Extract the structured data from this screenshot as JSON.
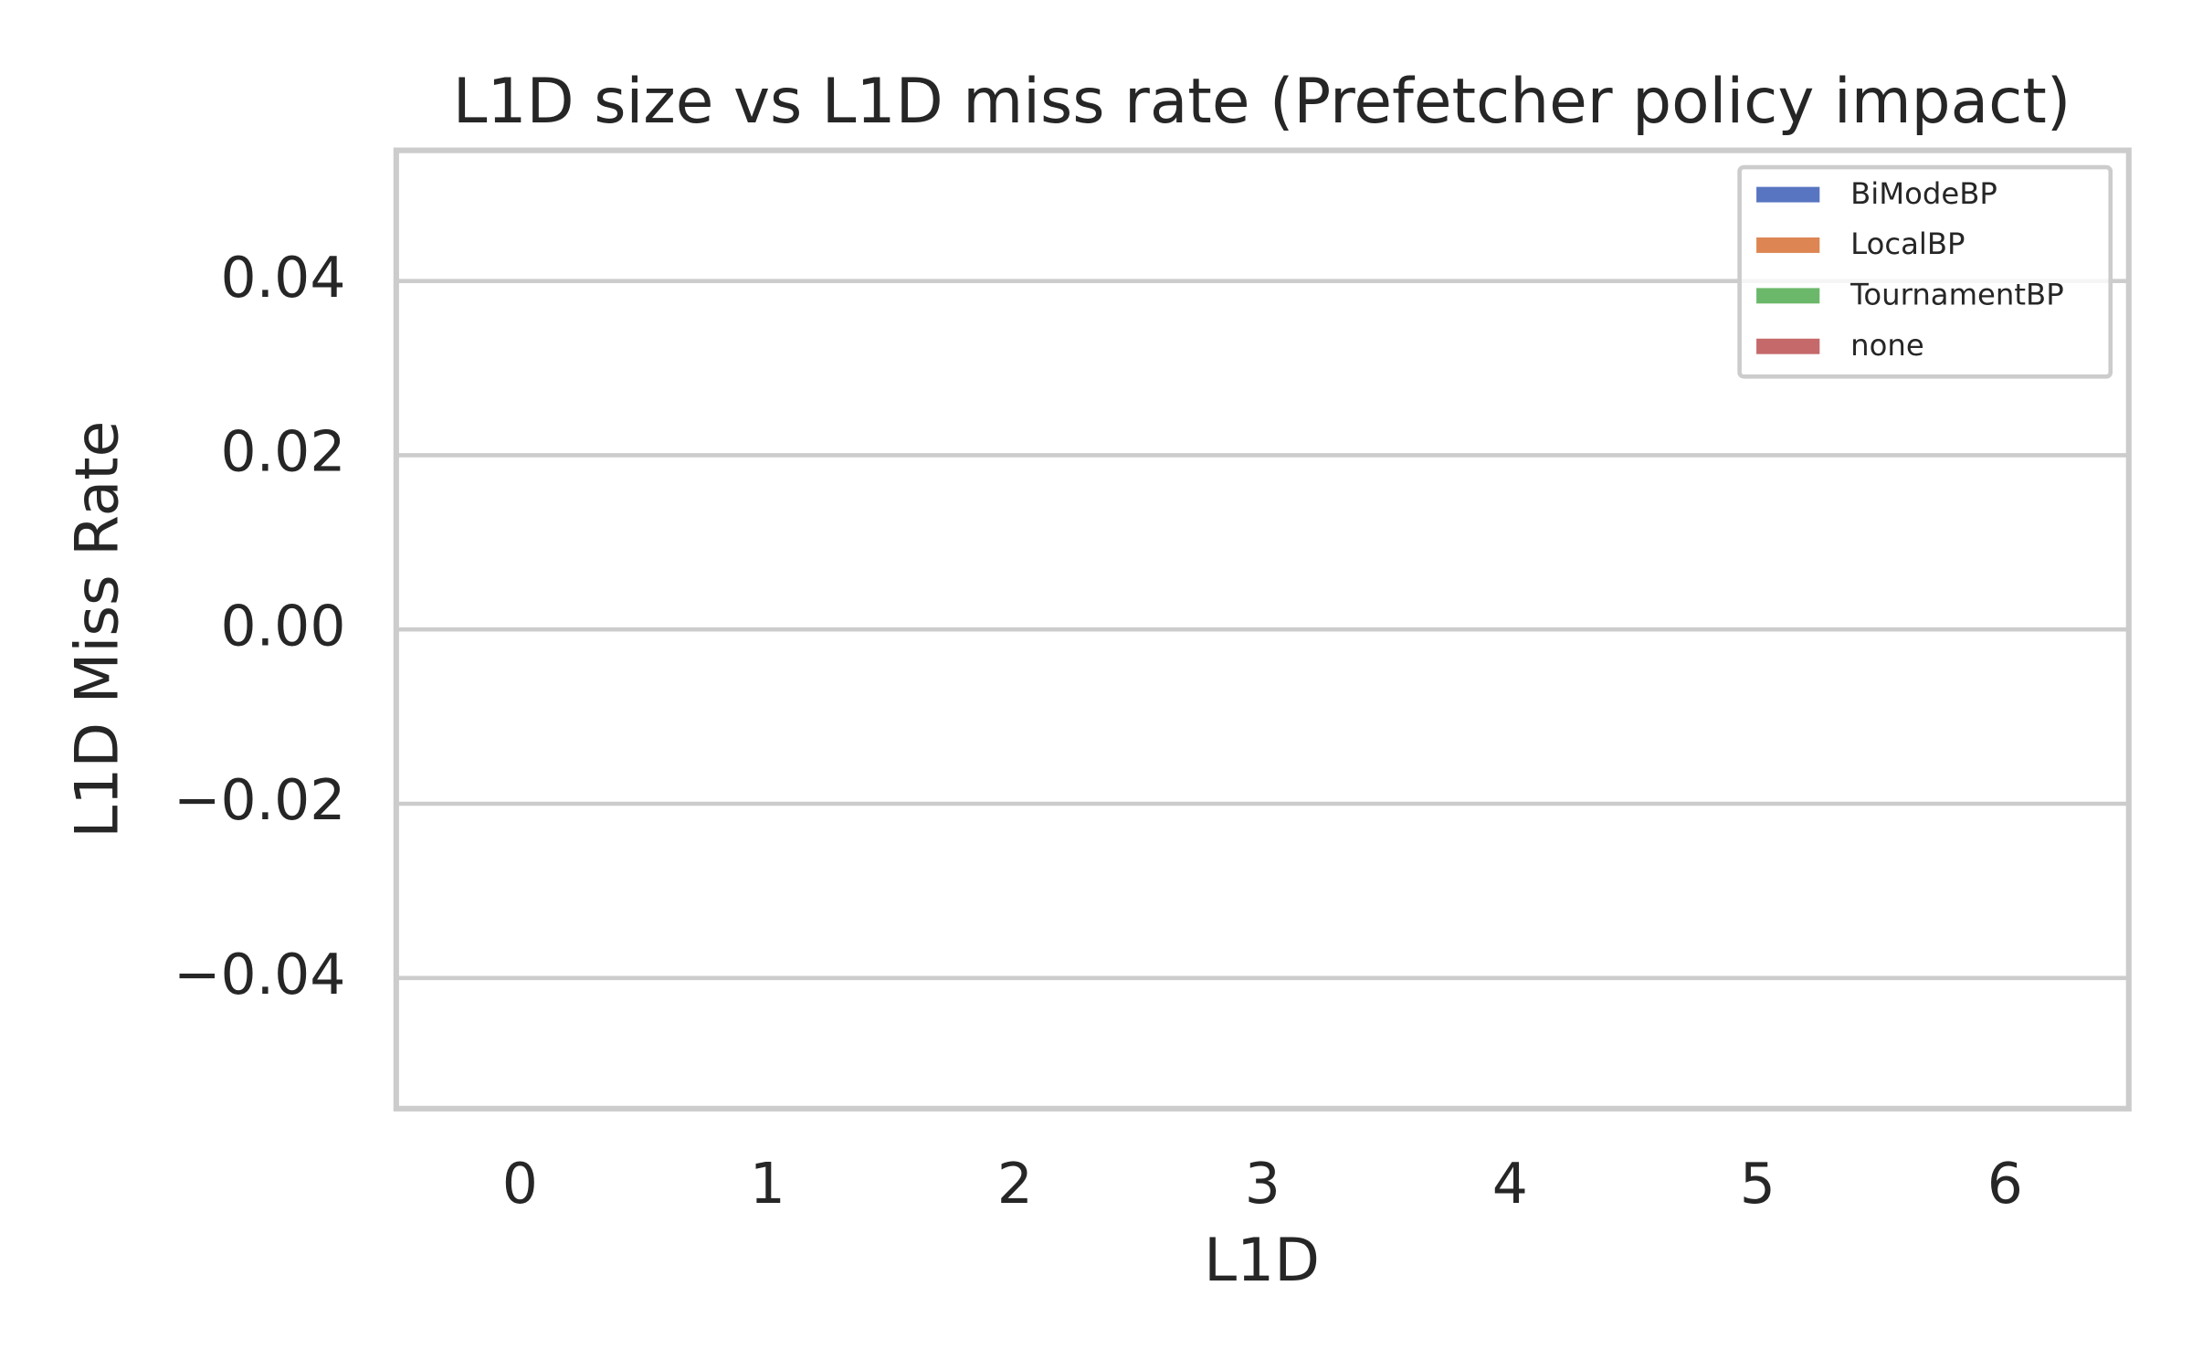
{
  "chart_data": {
    "type": "bar",
    "title": "L1D size vs L1D miss rate (Prefetcher policy impact)",
    "x_label": "L1D",
    "y_label": "L1D Miss Rate",
    "categories": [
      "0",
      "1",
      "2",
      "3",
      "4",
      "5",
      "6"
    ],
    "series": [
      {
        "name": "BiModeBP",
        "color": "#5875c1",
        "values": [
          null,
          null,
          null,
          null,
          null,
          null,
          null
        ]
      },
      {
        "name": "LocalBP",
        "color": "#dd8654",
        "values": [
          null,
          null,
          null,
          null,
          null,
          null,
          null
        ]
      },
      {
        "name": "TournamentBP",
        "color": "#6cb86b",
        "values": [
          null,
          null,
          null,
          null,
          null,
          null,
          null
        ]
      },
      {
        "name": "none",
        "color": "#c5696a",
        "values": [
          null,
          null,
          null,
          null,
          null,
          null,
          null
        ]
      }
    ],
    "ylim": [
      -0.055,
      0.055
    ],
    "yticks": [
      {
        "value": -0.04,
        "label": "−0.04"
      },
      {
        "value": -0.02,
        "label": "−0.02"
      },
      {
        "value": 0,
        "label": "0.00"
      },
      0.02,
      0.04
    ],
    "grid": true,
    "legend": "upper right"
  }
}
